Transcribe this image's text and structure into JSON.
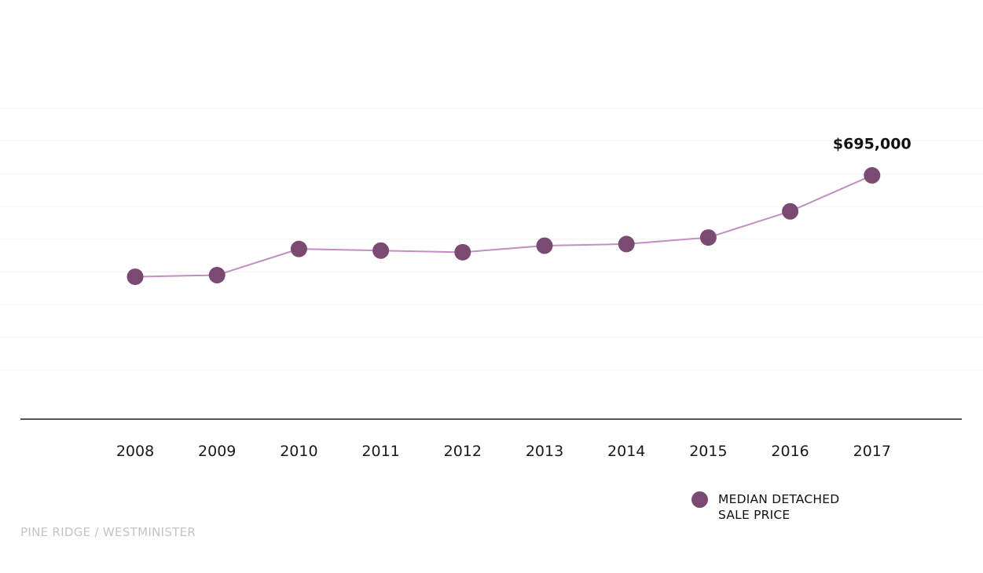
{
  "chart_data": {
    "type": "line",
    "x": [
      "2008",
      "2009",
      "2010",
      "2011",
      "2012",
      "2013",
      "2014",
      "2015",
      "2016",
      "2017"
    ],
    "series": [
      {
        "name": "MEDIAN DETACHED SALE PRICE",
        "values": [
          385000,
          390000,
          470000,
          465000,
          460000,
          480000,
          485000,
          505000,
          585000,
          695000
        ],
        "color": "#7b4a72",
        "line_color": "#c28fc2"
      }
    ],
    "annotations": [
      {
        "x": "2017",
        "text": "$695,000"
      }
    ],
    "ylim": [
      0,
      900000
    ],
    "gridlines": [
      100000,
      200000,
      300000,
      400000,
      500000,
      600000,
      700000,
      800000,
      900000
    ],
    "grid": true,
    "legend": "bottom-right",
    "xlabel": "",
    "ylabel": "",
    "title": ""
  },
  "legend": {
    "line1": "MEDIAN DETACHED",
    "line2": "SALE PRICE"
  },
  "footer": {
    "location_label": "PINE RIDGE / WESTMINISTER"
  }
}
